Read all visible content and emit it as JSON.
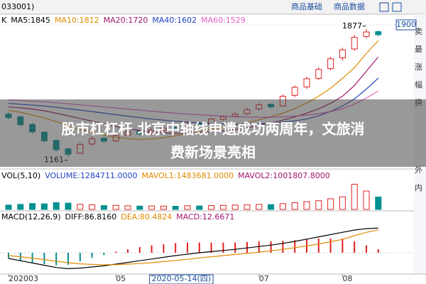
{
  "header": {
    "code": "033001)",
    "tabs": [
      "商品基础",
      "商品数据"
    ]
  },
  "banner": {
    "title_lines": [
      "股市杠杠杆 北京中轴线申遗成功两周年，文旅消",
      "费新场景亮相"
    ]
  },
  "side": [
    "卖",
    "最",
    "涨",
    "幅",
    "换",
    "外",
    "内"
  ],
  "chart_data": {
    "type": "candlestick",
    "legend": [
      "K",
      "MA5:1845",
      "MA10:1812",
      "MA20:1720",
      "MA40:1602",
      "MA60:1529"
    ],
    "legend_colors": [
      "#000000",
      "#000000",
      "#e08a00",
      "#a0156e",
      "#2040c0",
      "#e060c0"
    ],
    "categories": [
      "202003",
      null,
      null,
      null,
      null,
      null,
      null,
      null,
      null,
      "05",
      null,
      null,
      "2020-05-14(四)",
      null,
      null,
      null,
      null,
      null,
      null,
      null,
      null,
      "07",
      null,
      null,
      null,
      null,
      null,
      null,
      "08",
      null,
      null,
      null
    ],
    "open": [
      1400,
      1385,
      1342,
      1298,
      1252,
      1205,
      1180,
      1232,
      1265,
      1250,
      1282,
      1305,
      1290,
      1308,
      1325,
      1320,
      1352,
      1342,
      1370,
      1388,
      1402,
      1428,
      1455,
      1445,
      1505,
      1552,
      1600,
      1655,
      1715,
      1765,
      1835,
      1862
    ],
    "high": [
      1410,
      1392,
      1350,
      1305,
      1258,
      1210,
      1240,
      1275,
      1270,
      1290,
      1312,
      1310,
      1320,
      1332,
      1330,
      1362,
      1356,
      1380,
      1395,
      1410,
      1435,
      1462,
      1460,
      1510,
      1560,
      1610,
      1662,
      1722,
      1772,
      1845,
      1877,
      1870
    ],
    "low": [
      1370,
      1330,
      1290,
      1240,
      1190,
      1161,
      1175,
      1222,
      1238,
      1242,
      1275,
      1280,
      1282,
      1300,
      1310,
      1315,
      1332,
      1336,
      1362,
      1380,
      1395,
      1420,
      1432,
      1440,
      1495,
      1540,
      1590,
      1645,
      1700,
      1755,
      1825,
      1835
    ],
    "close": [
      1380,
      1340,
      1300,
      1250,
      1200,
      1175,
      1230,
      1262,
      1248,
      1280,
      1302,
      1288,
      1310,
      1322,
      1318,
      1350,
      1340,
      1372,
      1385,
      1400,
      1425,
      1452,
      1440,
      1500,
      1550,
      1598,
      1650,
      1710,
      1760,
      1830,
      1860,
      1845
    ],
    "up_color": "#e02020",
    "down_color": "#009090",
    "annotations": [
      "1877",
      "1161"
    ],
    "series": [
      {
        "color": "#e08a00",
        "values": [
          1420,
          1410,
          1395,
          1378,
          1358,
          1335,
          1315,
          1298,
          1282,
          1270,
          1262,
          1258,
          1260,
          1268,
          1278,
          1290,
          1302,
          1315,
          1325,
          1338,
          1352,
          1368,
          1385,
          1405,
          1430,
          1462,
          1500,
          1545,
          1600,
          1660,
          1740,
          1812
        ]
      },
      {
        "color": "#a0156e",
        "values": [
          1440,
          1435,
          1428,
          1418,
          1405,
          1390,
          1375,
          1360,
          1345,
          1330,
          1318,
          1308,
          1300,
          1295,
          1292,
          1292,
          1295,
          1300,
          1306,
          1314,
          1324,
          1336,
          1350,
          1366,
          1384,
          1405,
          1430,
          1460,
          1500,
          1560,
          1640,
          1720
        ]
      },
      {
        "color": "#2040c0",
        "values": [
          1460,
          1455,
          1450,
          1445,
          1438,
          1430,
          1422,
          1414,
          1405,
          1396,
          1388,
          1380,
          1372,
          1366,
          1360,
          1355,
          1350,
          1347,
          1345,
          1344,
          1345,
          1347,
          1350,
          1355,
          1362,
          1372,
          1390,
          1415,
          1445,
          1485,
          1540,
          1602
        ]
      },
      {
        "color": "#e060c0",
        "values": [
          1480,
          1476,
          1472,
          1468,
          1463,
          1458,
          1452,
          1446,
          1440,
          1434,
          1428,
          1422,
          1416,
          1410,
          1405,
          1400,
          1396,
          1392,
          1388,
          1385,
          1383,
          1382,
          1382,
          1384,
          1388,
          1394,
          1402,
          1414,
          1430,
          1455,
          1490,
          1529
        ]
      }
    ],
    "ylim": [
      1100,
      1920
    ],
    "yticks": [
      1900
    ],
    "volume": {
      "legend": [
        "VOL(5,10)",
        "VOLUME:1284711.0000",
        "MAVOL1:1483681.0000",
        "MAVOL2:1001807.8000"
      ],
      "legend_colors": [
        "#000000",
        "#2040c0",
        "#e08a00",
        "#a0156e"
      ],
      "values": [
        450000,
        520000,
        610000,
        580000,
        700000,
        650000,
        540000,
        480000,
        400000,
        420000,
        380000,
        350000,
        360000,
        340000,
        330000,
        380000,
        360000,
        400000,
        420000,
        450000,
        480000,
        520000,
        500000,
        600000,
        700000,
        800000,
        900000,
        1100000,
        1300000,
        2600000,
        1900000,
        1284711
      ],
      "ylim": [
        0,
        3000000
      ]
    },
    "macd": {
      "legend": [
        "MACD(12,26,9)",
        "DIFF:86.8160",
        "DEA:80.4824",
        "MACD:12.6671"
      ],
      "legend_colors": [
        "#000000",
        "#000000",
        "#e08a00",
        "#a0156e"
      ],
      "diff": [
        -20,
        -28,
        -36,
        -44,
        -52,
        -56,
        -54,
        -50,
        -46,
        -40,
        -34,
        -28,
        -22,
        -16,
        -10,
        -5,
        0,
        4,
        8,
        12,
        17,
        22,
        27,
        33,
        40,
        48,
        56,
        64,
        72,
        80,
        85,
        86.816
      ],
      "dea": [
        -10,
        -14,
        -19,
        -24,
        -30,
        -35,
        -39,
        -41,
        -42,
        -42,
        -40,
        -38,
        -35,
        -31,
        -27,
        -23,
        -18,
        -14,
        -10,
        -6,
        -2,
        2,
        7,
        12,
        18,
        24,
        31,
        39,
        47,
        60,
        72,
        80.4824
      ],
      "hist": [
        -20,
        -28,
        -34,
        -40,
        -44,
        -42,
        -30,
        -18,
        -8,
        4,
        12,
        20,
        26,
        30,
        34,
        36,
        36,
        36,
        36,
        36,
        38,
        40,
        40,
        42,
        44,
        48,
        50,
        50,
        50,
        40,
        26,
        12.6671
      ],
      "diff_color": "#000000",
      "dea_color": "#e08a00",
      "ylim": [
        -70,
        110
      ]
    }
  }
}
